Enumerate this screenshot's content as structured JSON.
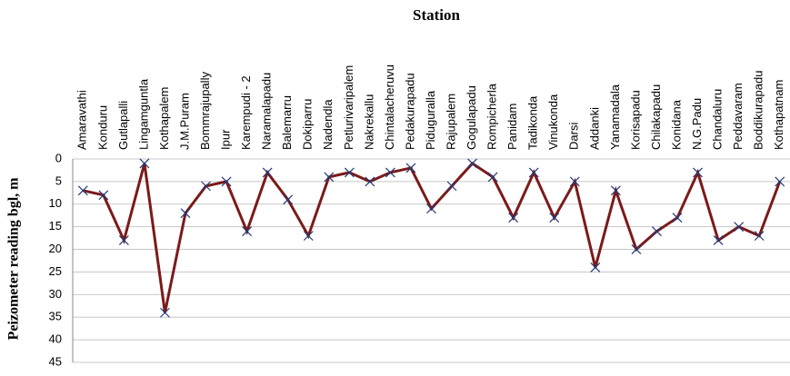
{
  "chart_data": {
    "type": "line",
    "title": "Station",
    "y_label": "Peizometer reading  bgl, m",
    "categories": [
      "Amaravathi",
      "Konduru",
      "Gutlapalli",
      "Lingamguntla",
      "Kothapalem",
      "J.M.Puram",
      "Bommrajupally",
      "Ipur",
      "Karempudi - 2",
      "Naramalapadu",
      "Balemarru",
      "Dokiparru",
      "Nadendla",
      "Petlurivaripalem",
      "Nakrekallu",
      "Chintalacheruvu",
      "Pedakurapadu",
      "Piduguralla",
      "Rajupalem",
      "Gogulapadu",
      "Rompicherla",
      "Panidam",
      "Tadikonda",
      "Vinukonda",
      "Darsi",
      "Addanki",
      "Yanamadala",
      "Korisapadu",
      "Chilakapadu",
      "Konidana",
      "N.G.Padu",
      "Chandaluru",
      "Peddavaram",
      "Boddikurapadu",
      "Kothapatnam"
    ],
    "values": [
      7,
      8,
      18,
      1,
      34,
      12,
      6,
      5,
      16,
      3,
      9,
      17,
      4,
      3,
      5,
      3,
      2,
      11,
      6,
      1,
      4,
      13,
      3,
      13,
      5,
      24,
      7,
      20,
      16,
      13,
      3,
      18,
      15,
      17,
      5
    ],
    "color": "#7b1a1a",
    "marker_color": "#1f3a7a",
    "ylim": [
      0,
      45
    ],
    "yticks": [
      0,
      5,
      10,
      15,
      20,
      25,
      30,
      35,
      40,
      45
    ],
    "y_inverted": true,
    "grid": true
  }
}
